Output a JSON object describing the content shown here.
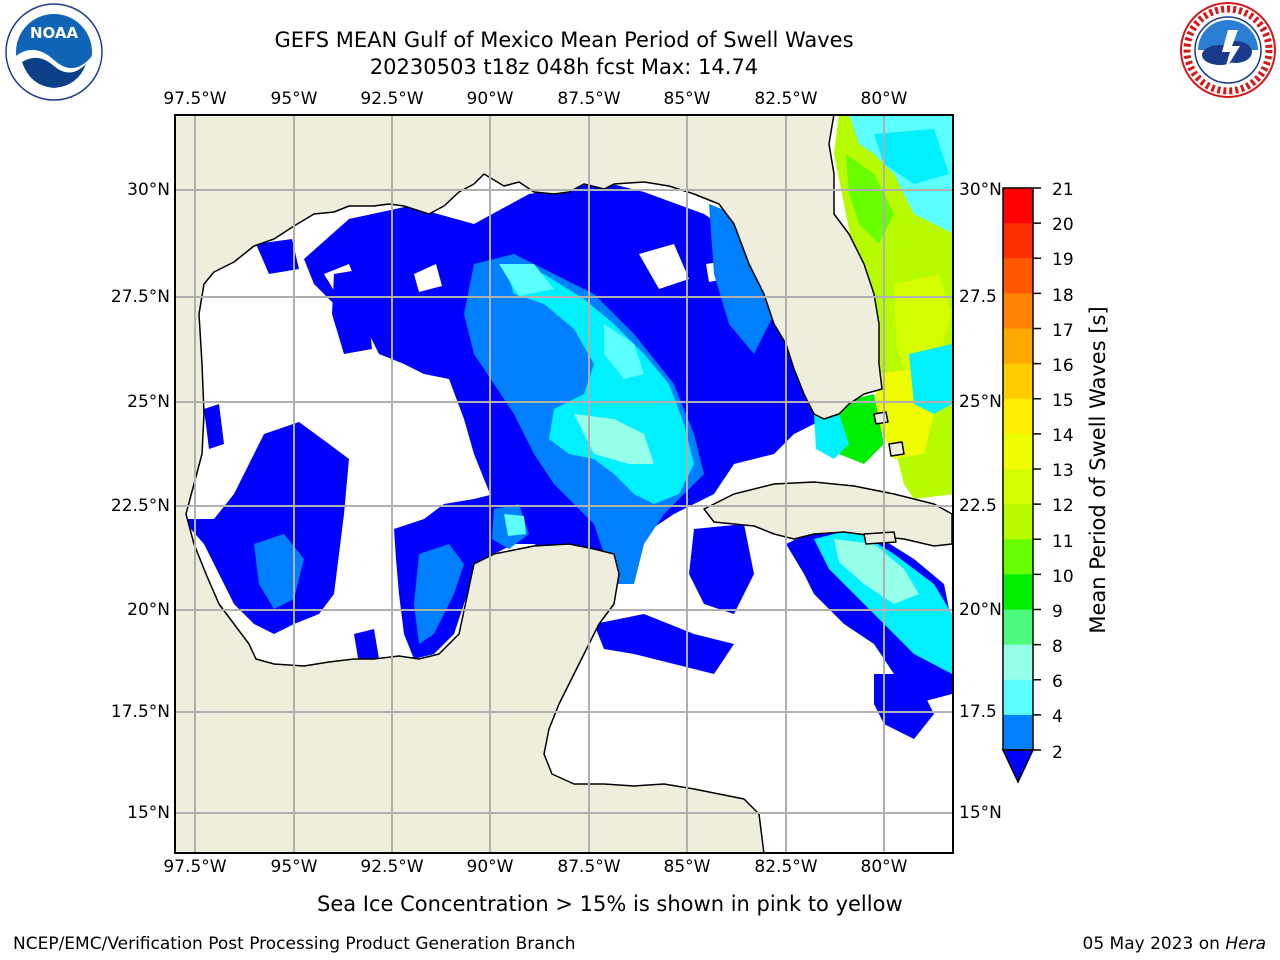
{
  "title_line1": "GEFS MEAN Gulf of Mexico Mean Period of Swell Waves",
  "title_line2": "20230503 t18z 048h fcst   Max: 14.74",
  "logos": {
    "noaa": {
      "icon": "noaa-logo",
      "text": "NOAA",
      "ring_text": "NATIONAL OCEANIC AND ATMOSPHERIC ADMINISTRATION · U.S. DEPARTMENT OF COMMERCE"
    },
    "nws": {
      "icon": "nws-logo",
      "ring_text": "NATIONAL WEATHER SERVICE"
    }
  },
  "map": {
    "lon_labels": [
      "97.5°W",
      "95°W",
      "92.5°W",
      "90°W",
      "87.5°W",
      "85°W",
      "82.5°W",
      "80°W"
    ],
    "lat_labels_left": [
      "30°N",
      "27.5°N",
      "25°N",
      "22.5°N",
      "20°N",
      "17.5°N",
      "15°N"
    ],
    "lat_labels_right": [
      "30°N",
      "27.5",
      "25°N",
      "22.5",
      "20°N",
      "17.5",
      "15°N"
    ],
    "lon_range": [
      -98,
      -78.3
    ],
    "lat_range": [
      14,
      31.7
    ],
    "colors": {
      "land": "#efeedd",
      "ocean_nodata": "#ffffff",
      "grid": "#b0b0b0"
    }
  },
  "colorbar": {
    "label": "Mean Period of Swell Waves [s]",
    "ticks": [
      "21",
      "20",
      "19",
      "18",
      "17",
      "16",
      "15",
      "14",
      "13",
      "12",
      "11",
      "10",
      "9",
      "8",
      "6",
      "4",
      "2"
    ],
    "colors": [
      "#ff0000",
      "#ff2e00",
      "#ff5800",
      "#ff8200",
      "#ffa800",
      "#ffcc00",
      "#ffee00",
      "#eefd00",
      "#d3fd00",
      "#b7fb00",
      "#68ff00",
      "#00ee00",
      "#4cfa7c",
      "#96ffe8",
      "#5cffff",
      "#00f0ff",
      "#0080ff"
    ],
    "extend_color": "#0000ff"
  },
  "subtitle": "Sea Ice Concentration > 15% is shown in pink to yellow",
  "footer": {
    "left": "NCEP/EMC/Verification Post Processing Product Generation Branch",
    "right_date": "05 May 2023 on ",
    "right_host": "Hera"
  }
}
